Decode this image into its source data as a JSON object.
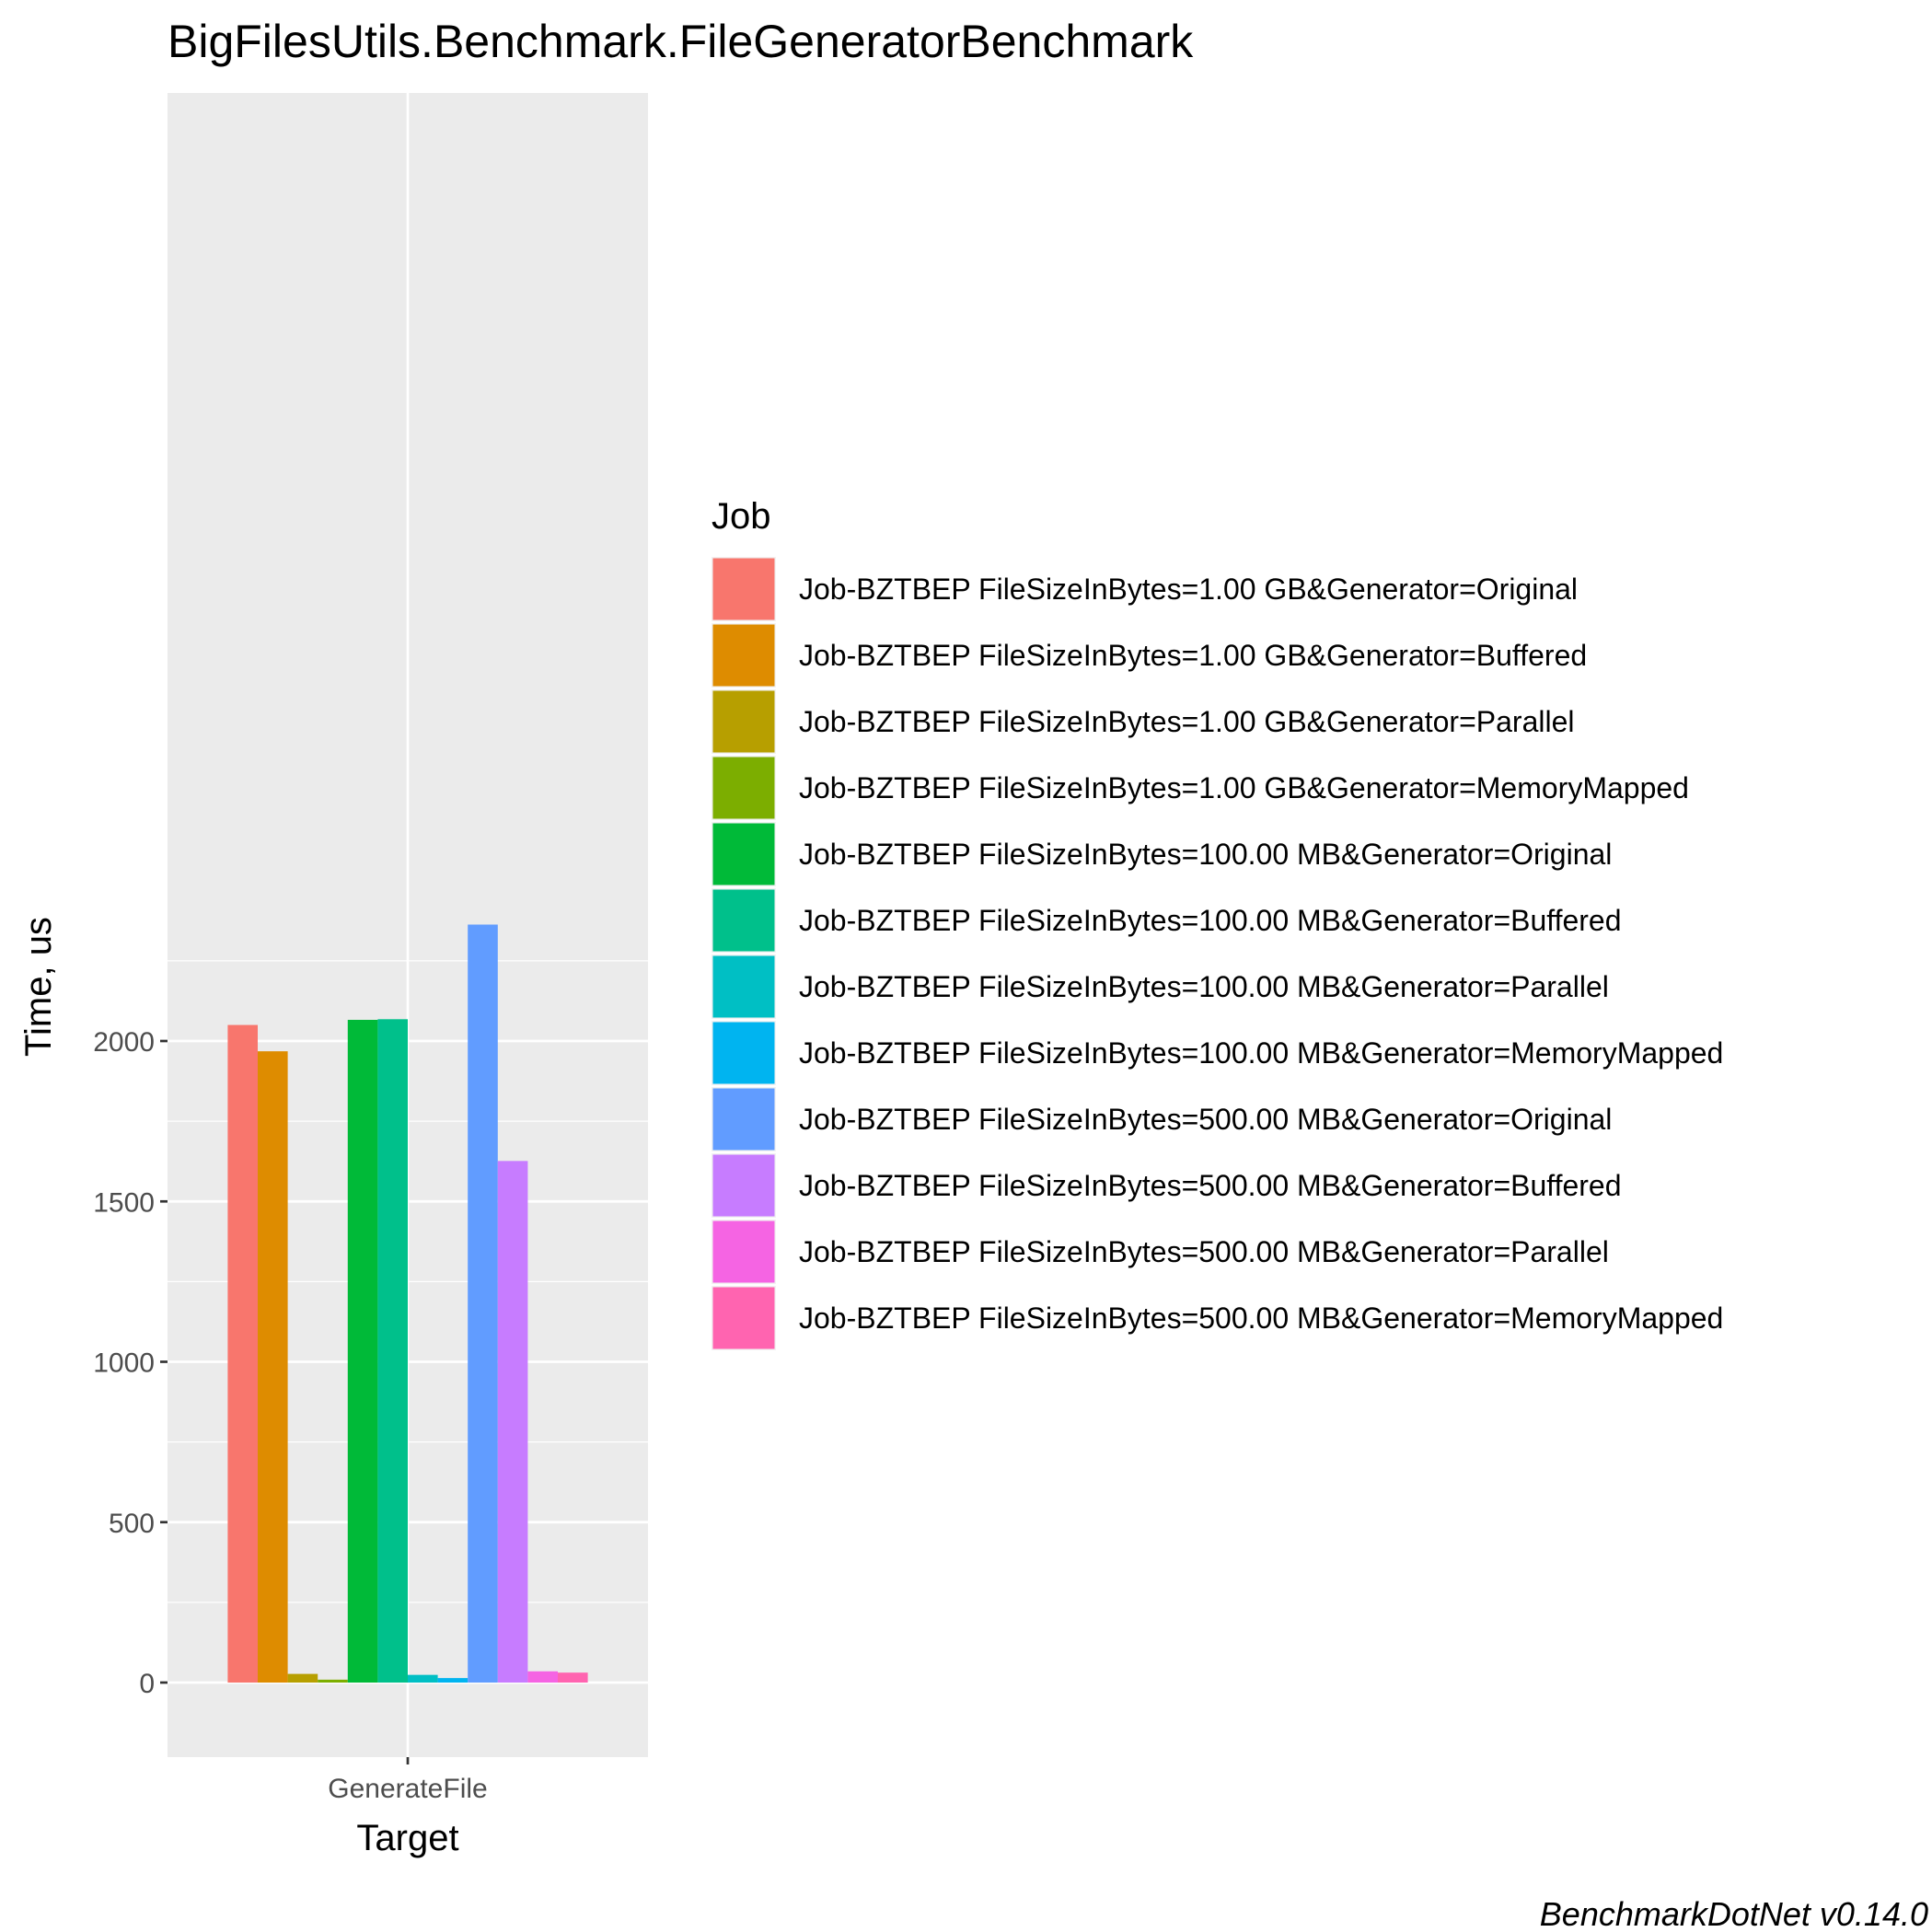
{
  "chart_data": {
    "type": "bar",
    "title": "BigFilesUtils.Benchmark.FileGeneratorBenchmark",
    "xlabel": "Target",
    "ylabel": "Time, us",
    "categories": [
      "GenerateFile"
    ],
    "ylim": [
      -115,
      2475
    ],
    "yticks": [
      0,
      500,
      1000,
      1500,
      2000
    ],
    "grid": true,
    "legend_title": "Job",
    "legend_position": "right",
    "caption": "BenchmarkDotNet v0.14.0",
    "series": [
      {
        "name": "Job-BZTBEP FileSizeInBytes=1.00 GB&Generator=Original",
        "color": "#F8766D",
        "values": [
          2050
        ]
      },
      {
        "name": "Job-BZTBEP FileSizeInBytes=1.00 GB&Generator=Buffered",
        "color": "#DE8C00",
        "values": [
          1968
        ]
      },
      {
        "name": "Job-BZTBEP FileSizeInBytes=1.00 GB&Generator=Parallel",
        "color": "#B79F00",
        "values": [
          27
        ]
      },
      {
        "name": "Job-BZTBEP FileSizeInBytes=1.00 GB&Generator=MemoryMapped",
        "color": "#7CAE00",
        "values": [
          9
        ]
      },
      {
        "name": "Job-BZTBEP FileSizeInBytes=100.00 MB&Generator=Original",
        "color": "#00BA38",
        "values": [
          2066
        ]
      },
      {
        "name": "Job-BZTBEP FileSizeInBytes=100.00 MB&Generator=Buffered",
        "color": "#00C08B",
        "values": [
          2068
        ]
      },
      {
        "name": "Job-BZTBEP FileSizeInBytes=100.00 MB&Generator=Parallel",
        "color": "#00BFC4",
        "values": [
          24
        ]
      },
      {
        "name": "Job-BZTBEP FileSizeInBytes=100.00 MB&Generator=MemoryMapped",
        "color": "#00B4F0",
        "values": [
          14
        ]
      },
      {
        "name": "Job-BZTBEP FileSizeInBytes=500.00 MB&Generator=Original",
        "color": "#619CFF",
        "values": [
          2363
        ]
      },
      {
        "name": "Job-BZTBEP FileSizeInBytes=500.00 MB&Generator=Buffered",
        "color": "#C77CFF",
        "values": [
          1626
        ]
      },
      {
        "name": "Job-BZTBEP FileSizeInBytes=500.00 MB&Generator=Parallel",
        "color": "#F564E3",
        "values": [
          35
        ]
      },
      {
        "name": "Job-BZTBEP FileSizeInBytes=500.00 MB&Generator=MemoryMapped",
        "color": "#FF64B0",
        "values": [
          31
        ]
      }
    ]
  }
}
